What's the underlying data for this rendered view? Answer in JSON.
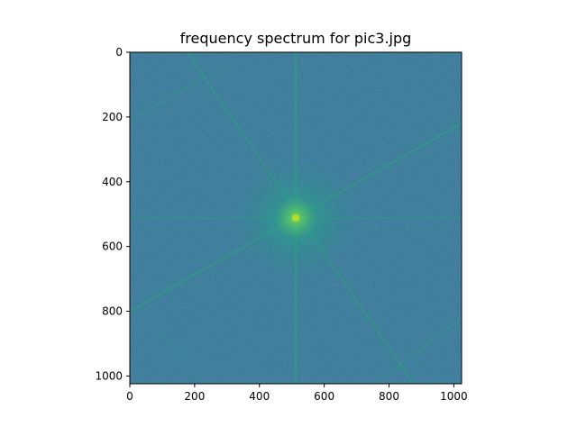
{
  "chart_data": {
    "type": "heatmap",
    "title": "frequency spectrum for pic3.jpg",
    "xlabel": "",
    "ylabel": "",
    "xlim": [
      0,
      1024
    ],
    "ylim": [
      1024,
      0
    ],
    "x_ticks": [
      0,
      200,
      400,
      600,
      800,
      1000
    ],
    "y_ticks": [
      0,
      200,
      400,
      600,
      800,
      1000
    ],
    "colormap": "viridis",
    "background_color": "#2f6e8e",
    "center": [
      512,
      512
    ],
    "grid": false,
    "legend": "none"
  }
}
